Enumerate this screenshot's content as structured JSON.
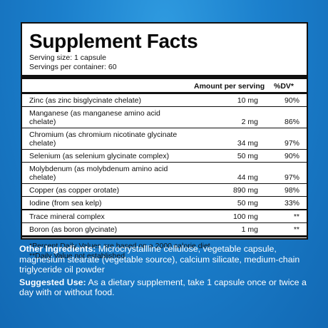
{
  "panel": {
    "title": "Supplement Facts",
    "serving_size": "Serving size: 1 capsule",
    "servings_per_container": "Servings per container: 60",
    "header": {
      "amount": "Amount per serving",
      "dv": "%DV*"
    },
    "rows": [
      {
        "name": "Zinc (as zinc bisglycinate chelate)",
        "amount": "10 mg",
        "dv": "90%"
      },
      {
        "name": "Manganese (as manganese amino acid chelate)",
        "amount": "2 mg",
        "dv": "86%"
      },
      {
        "name": "Chromium (as chromium nicotinate glycinate chelate)",
        "amount": "34 mg",
        "dv": "97%"
      },
      {
        "name": "Selenium (as selenium glycinate complex)",
        "amount": "50 mg",
        "dv": "90%"
      },
      {
        "name": "Molybdenum (as molybdenum amino acid chelate)",
        "amount": "44 mg",
        "dv": "97%"
      },
      {
        "name": "Copper (as copper orotate)",
        "amount": "890 mg",
        "dv": "98%"
      },
      {
        "name": "Iodine (from sea kelp)",
        "amount": "50 mg",
        "dv": "33%"
      },
      {
        "name": "Trace mineral complex",
        "amount": "100 mg",
        "dv": "**"
      },
      {
        "name": "Boron (as boron glycinate)",
        "amount": "1 mg",
        "dv": "**"
      }
    ],
    "footnote_1": "*Percent Daily Values are based on a 2000 calorie diet.",
    "footnote_2": "**Daily Value not established."
  },
  "other_ingredients": {
    "label": "Other Ingredients:",
    "text": " Microcrystallline cellulose, vegetable capsule, magnesium stearate (vegetable source), calcium silicate, medium-chain triglyceride oil powder"
  },
  "suggested_use": {
    "label": "Suggested Use:",
    "text": " As a dietary supplement, take 1 capsule once or twice a day with or without food."
  },
  "colors": {
    "background": "#1b7fcc",
    "panel": "#ffffff",
    "ink": "#111111"
  }
}
